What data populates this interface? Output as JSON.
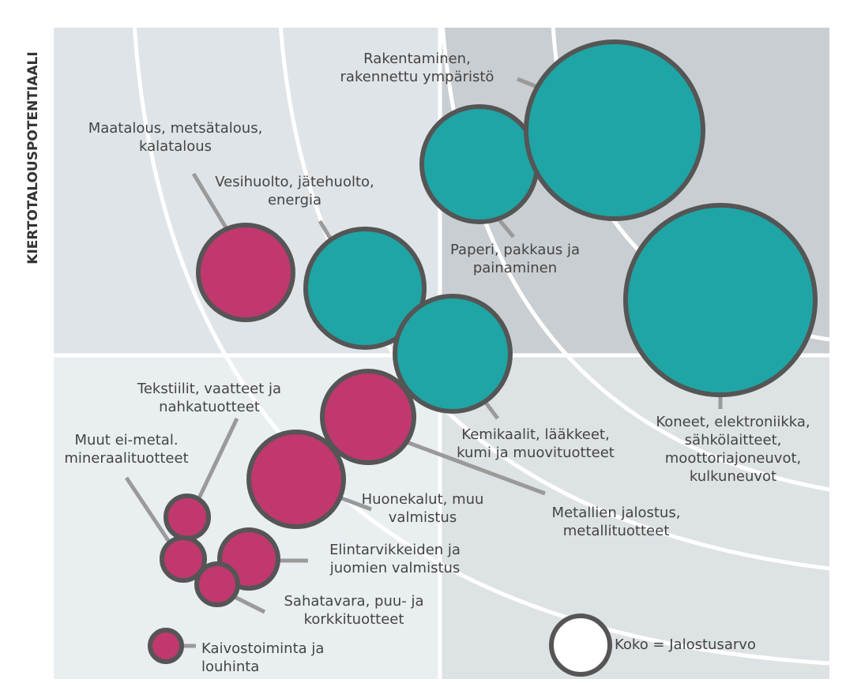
{
  "y_axis_label": "KIERTOTALOUSPOTENTIAALI",
  "labels": [
    [
      "Rakentaminen,",
      "rakennettu ympäristö"
    ],
    [
      "Paperi, pakkaus ja",
      "painaminen"
    ],
    [
      "Koneet, elektroniikka,",
      "sähkölaitteet,",
      "moottoriajoneuvot,",
      "kulkuneuvot"
    ],
    [
      "Maatalous, metsätalous,",
      "kalatalous"
    ],
    [
      "Vesihuolto, jätehuolto,",
      "energia"
    ],
    [
      "Kemikaalit, lääkkeet,",
      "kumi ja muovituotteet"
    ],
    [
      "Metallien jalostus,",
      "metallituotteet"
    ],
    [
      "Huonekalut, muu",
      "valmistus"
    ],
    [
      "Tekstiilit, vaatteet ja",
      "nahkatuotteet"
    ],
    [
      "Muut ei-metal.",
      "mineraalituotteet"
    ],
    [
      "Elintarvikkeiden ja",
      "juomien valmistus"
    ],
    [
      "Sahatavara, puu- ja",
      "korkkituotteet"
    ],
    [
      "Kaivostoiminta ja",
      "louhinta"
    ]
  ],
  "legend": "Koko = Jalostusarvo"
}
